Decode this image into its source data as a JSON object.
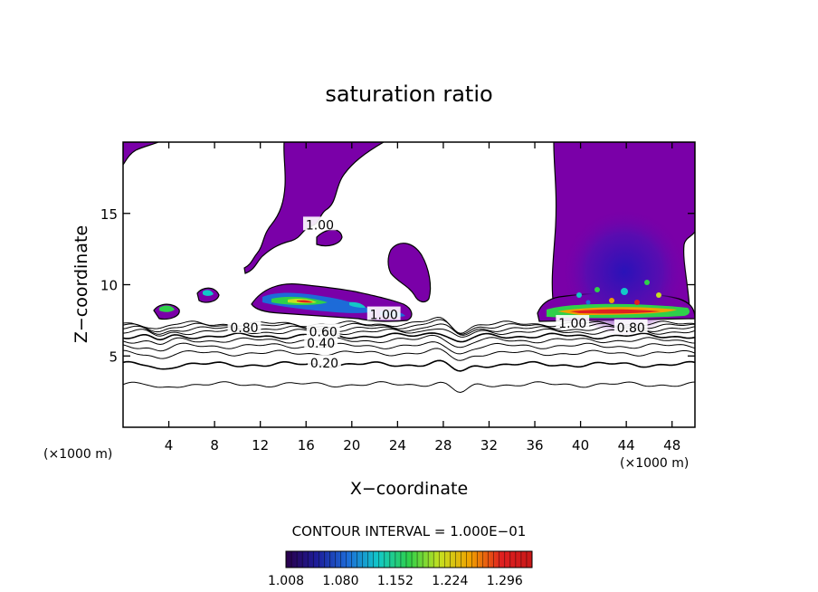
{
  "chart_data": {
    "type": "contour",
    "title": "saturation ratio",
    "xlabel": "X−coordinate",
    "ylabel": "Z−coordinate",
    "x_unit_left": "(×1000 m)",
    "x_unit_right": "(×1000 m)",
    "xlim": [
      0,
      50
    ],
    "ylim": [
      0,
      20
    ],
    "x_ticks": [
      4,
      8,
      12,
      16,
      20,
      24,
      28,
      32,
      36,
      40,
      44,
      48
    ],
    "y_ticks": [
      5,
      10,
      15
    ],
    "contour_interval_text": "CONTOUR INTERVAL = 1.000E−01",
    "contour_levels": [
      0.1,
      0.2,
      0.3,
      0.4,
      0.5,
      0.6,
      0.7,
      0.8,
      0.9,
      1.0
    ],
    "contour_labels": [
      {
        "text": "0.20",
        "x": 17.6,
        "y": 4.5
      },
      {
        "text": "0.40",
        "x": 17.3,
        "y": 5.9
      },
      {
        "text": "0.60",
        "x": 17.5,
        "y": 6.7
      },
      {
        "text": "0.80",
        "x": 10.6,
        "y": 7.0
      },
      {
        "text": "0.80",
        "x": 44.4,
        "y": 7.0
      },
      {
        "text": "1.00",
        "x": 22.8,
        "y": 7.9
      },
      {
        "text": "1.00",
        "x": 39.3,
        "y": 7.3
      },
      {
        "text": "1.00",
        "x": 17.2,
        "y": 14.2
      }
    ],
    "colorbar": {
      "min": 1.008,
      "max": 1.332,
      "tick_labels": [
        "1.008",
        "1.080",
        "1.152",
        "1.224",
        "1.296"
      ],
      "colors": [
        "#2a004a",
        "#1d1d9a",
        "#1d6bd8",
        "#12c8c8",
        "#2fd04a",
        "#c6e020",
        "#f0a000",
        "#e02020",
        "#c81818"
      ]
    },
    "colors": {
      "supersaturated": "#7a00a8",
      "core_dark": "#3a16b0"
    }
  }
}
